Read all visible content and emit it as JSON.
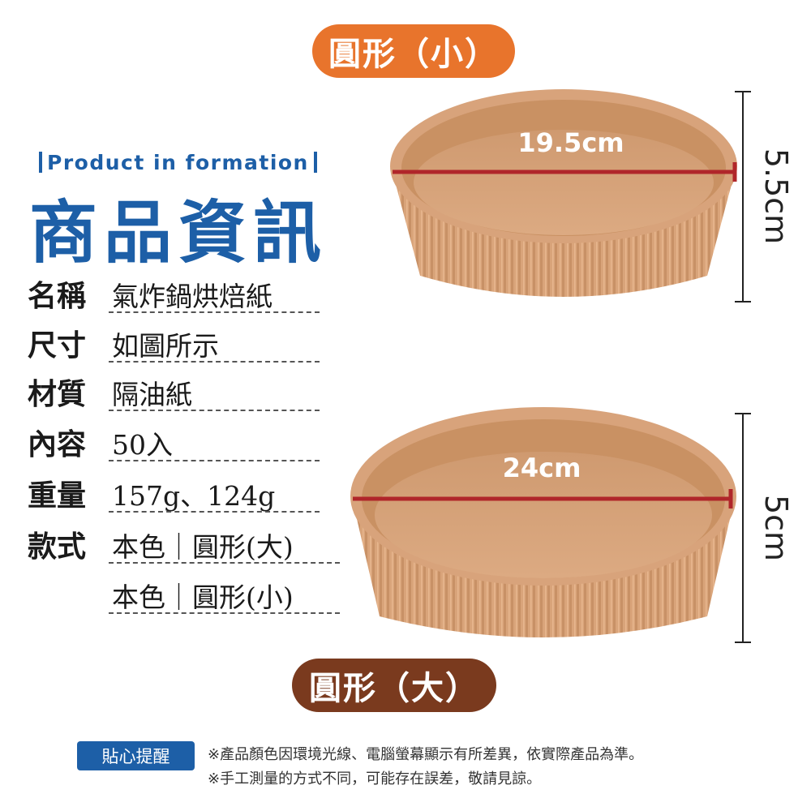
{
  "badges": {
    "small": "圓形（小）",
    "large": "圓形（大）"
  },
  "heading": {
    "english": "Product in formation",
    "title": "商品資訊"
  },
  "specs": [
    {
      "label": "名稱",
      "value": "氣炸鍋烘焙紙"
    },
    {
      "label": "尺寸",
      "value": "如圖所示"
    },
    {
      "label": "材質",
      "value": "隔油紙"
    },
    {
      "label": "內容",
      "value": "50入"
    },
    {
      "label": "重量",
      "value": "157g、124g"
    },
    {
      "label": "款式",
      "value": "本色｜圓形(大)"
    },
    {
      "label": "",
      "value": "本色｜圓形(小)"
    }
  ],
  "dimensions": {
    "small": {
      "diameter": "19.5cm",
      "height": "5.5cm"
    },
    "large": {
      "diameter": "24cm",
      "height": "5cm"
    }
  },
  "tips": {
    "badge": "貼心提醒",
    "lines": [
      "※產品顏色因環境光線、電腦螢幕顯示有所差異，依實際產品為準。",
      "※手工測量的方式不同，可能存在誤差，敬請見諒。"
    ]
  },
  "colors": {
    "brand_blue": "#1d5fa7",
    "small_badge": "#e8742c",
    "large_badge": "#7a3a1e",
    "paper": "#d7a27a",
    "measure_line": "#b0262a"
  }
}
